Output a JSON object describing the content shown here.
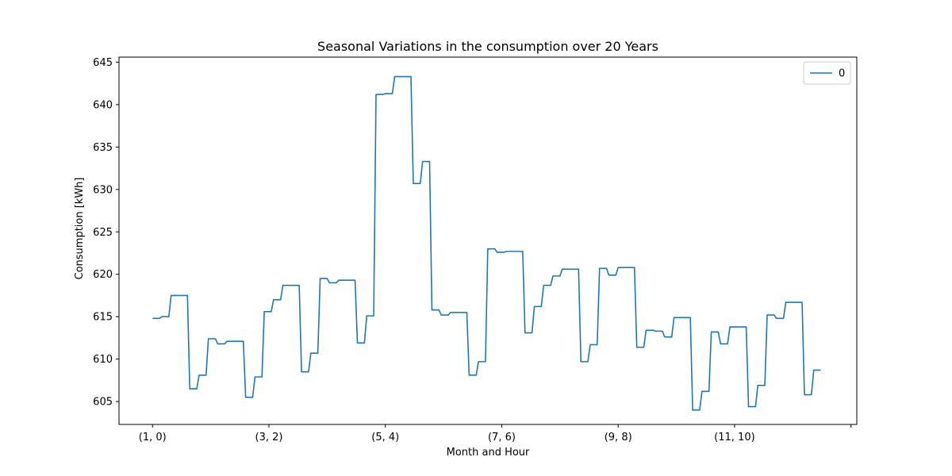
{
  "chart_data": {
    "type": "line",
    "title": "Seasonal Variations in the consumption over 20 Years",
    "xlabel": "Month and Hour",
    "ylabel": "Consumption [kWh]",
    "x_ticks": [
      {
        "index": 0,
        "label": "(1, 0)"
      },
      {
        "index": 50,
        "label": "(3, 2)"
      },
      {
        "index": 100,
        "label": "(5, 4)"
      },
      {
        "index": 150,
        "label": "(7, 6)"
      },
      {
        "index": 200,
        "label": "(9, 8)"
      },
      {
        "index": 250,
        "label": "(11, 10)"
      },
      {
        "index": 300,
        "label": ""
      }
    ],
    "y_ticks": [
      605,
      610,
      615,
      620,
      625,
      630,
      635,
      640,
      645
    ],
    "xlim": [
      -14.4,
      302.5
    ],
    "ylim": [
      602.3,
      645.6
    ],
    "legend": {
      "position": "top-right",
      "entries": [
        "0"
      ]
    },
    "grid": false,
    "series": [
      {
        "name": "0",
        "color": "#1f77b4",
        "x_start": 0,
        "values": [
          614.8,
          614.8,
          614.8,
          614.8,
          615.0,
          615.0,
          615.0,
          615.0,
          617.5,
          617.5,
          617.5,
          617.5,
          617.5,
          617.5,
          617.5,
          617.5,
          606.5,
          606.5,
          606.5,
          606.5,
          608.1,
          608.1,
          608.1,
          608.1,
          612.4,
          612.4,
          612.4,
          612.4,
          611.8,
          611.8,
          611.8,
          611.8,
          612.1,
          612.1,
          612.1,
          612.1,
          612.1,
          612.1,
          612.1,
          612.1,
          605.5,
          605.5,
          605.5,
          605.5,
          607.9,
          607.9,
          607.9,
          607.9,
          615.6,
          615.6,
          615.6,
          615.6,
          617.0,
          617.0,
          617.0,
          617.0,
          618.7,
          618.7,
          618.7,
          618.7,
          618.7,
          618.7,
          618.7,
          618.7,
          608.5,
          608.5,
          608.5,
          608.5,
          610.7,
          610.7,
          610.7,
          610.7,
          619.5,
          619.5,
          619.5,
          619.5,
          619.0,
          619.0,
          619.0,
          619.0,
          619.3,
          619.3,
          619.3,
          619.3,
          619.3,
          619.3,
          619.3,
          619.3,
          611.9,
          611.9,
          611.9,
          611.9,
          615.1,
          615.1,
          615.1,
          615.1,
          641.2,
          641.2,
          641.2,
          641.2,
          641.3,
          641.3,
          641.3,
          641.3,
          643.3,
          643.3,
          643.3,
          643.3,
          643.3,
          643.3,
          643.3,
          643.3,
          630.7,
          630.7,
          630.7,
          630.7,
          633.3,
          633.3,
          633.3,
          633.3,
          615.8,
          615.8,
          615.8,
          615.8,
          615.2,
          615.2,
          615.2,
          615.2,
          615.5,
          615.5,
          615.5,
          615.5,
          615.5,
          615.5,
          615.5,
          615.5,
          608.1,
          608.1,
          608.1,
          608.1,
          609.7,
          609.7,
          609.7,
          609.7,
          623.0,
          623.0,
          623.0,
          623.0,
          622.6,
          622.6,
          622.6,
          622.6,
          622.7,
          622.7,
          622.7,
          622.7,
          622.7,
          622.7,
          622.7,
          622.7,
          613.1,
          613.1,
          613.1,
          613.1,
          616.2,
          616.2,
          616.2,
          616.2,
          618.7,
          618.7,
          618.7,
          618.7,
          619.8,
          619.8,
          619.8,
          619.8,
          620.6,
          620.6,
          620.6,
          620.6,
          620.6,
          620.6,
          620.6,
          620.6,
          609.7,
          609.7,
          609.7,
          609.7,
          611.7,
          611.7,
          611.7,
          611.7,
          620.7,
          620.7,
          620.7,
          620.7,
          619.9,
          619.9,
          619.9,
          619.9,
          620.8,
          620.8,
          620.8,
          620.8,
          620.8,
          620.8,
          620.8,
          620.8,
          611.4,
          611.4,
          611.4,
          611.4,
          613.4,
          613.4,
          613.4,
          613.4,
          613.3,
          613.3,
          613.3,
          613.3,
          612.6,
          612.6,
          612.6,
          612.6,
          614.9,
          614.9,
          614.9,
          614.9,
          614.9,
          614.9,
          614.9,
          614.9,
          604.0,
          604.0,
          604.0,
          604.0,
          606.2,
          606.2,
          606.2,
          606.2,
          613.2,
          613.2,
          613.2,
          613.2,
          611.8,
          611.8,
          611.8,
          611.8,
          613.8,
          613.8,
          613.8,
          613.8,
          613.8,
          613.8,
          613.8,
          613.8,
          604.4,
          604.4,
          604.4,
          604.4,
          606.9,
          606.9,
          606.9,
          606.9,
          615.2,
          615.2,
          615.2,
          615.2,
          614.8,
          614.8,
          614.8,
          614.8,
          616.7,
          616.7,
          616.7,
          616.7,
          616.7,
          616.7,
          616.7,
          616.7,
          605.8,
          605.8,
          605.8,
          605.8,
          608.7,
          608.7,
          608.7,
          608.7
        ]
      }
    ]
  }
}
